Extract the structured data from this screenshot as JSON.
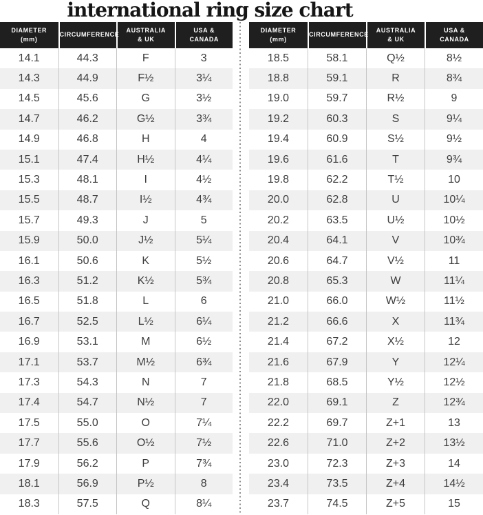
{
  "title": "international ring size chart",
  "columns_display": [
    "DIAMETER\n(mm)",
    "CIRCUMFERENCE",
    "AUSTRALIA\n& UK",
    "USA &\nCANADA"
  ],
  "colors": {
    "header_bg": "#1f1f1f",
    "header_text": "#ffffff",
    "row_alt": "#f0f0f1",
    "cell_text": "#3d3d3d",
    "grid_line": "#c4c4c4",
    "divider_dot": "#8c8c8c",
    "title_text": "#161616"
  },
  "chart_data": {
    "type": "table",
    "title": "international ring size chart",
    "columns": [
      "DIAMETER (mm)",
      "CIRCUMFERENCE",
      "AUSTRALIA & UK",
      "USA & CANADA"
    ],
    "tables": [
      {
        "rows": [
          [
            "14.1",
            "44.3",
            "F",
            "3"
          ],
          [
            "14.3",
            "44.9",
            "F½",
            "3¼"
          ],
          [
            "14.5",
            "45.6",
            "G",
            "3½"
          ],
          [
            "14.7",
            "46.2",
            "G½",
            "3¾"
          ],
          [
            "14.9",
            "46.8",
            "H",
            "4"
          ],
          [
            "15.1",
            "47.4",
            "H½",
            "4¼"
          ],
          [
            "15.3",
            "48.1",
            "I",
            "4½"
          ],
          [
            "15.5",
            "48.7",
            "I½",
            "4¾"
          ],
          [
            "15.7",
            "49.3",
            "J",
            "5"
          ],
          [
            "15.9",
            "50.0",
            "J½",
            "5¼"
          ],
          [
            "16.1",
            "50.6",
            "K",
            "5½"
          ],
          [
            "16.3",
            "51.2",
            "K½",
            "5¾"
          ],
          [
            "16.5",
            "51.8",
            "L",
            "6"
          ],
          [
            "16.7",
            "52.5",
            "L½",
            "6¼"
          ],
          [
            "16.9",
            "53.1",
            "M",
            "6½"
          ],
          [
            "17.1",
            "53.7",
            "M½",
            "6¾"
          ],
          [
            "17.3",
            "54.3",
            "N",
            "7"
          ],
          [
            "17.4",
            "54.7",
            "N½",
            "7"
          ],
          [
            "17.5",
            "55.0",
            "O",
            "7¼"
          ],
          [
            "17.7",
            "55.6",
            "O½",
            "7½"
          ],
          [
            "17.9",
            "56.2",
            "P",
            "7¾"
          ],
          [
            "18.1",
            "56.9",
            "P½",
            "8"
          ],
          [
            "18.3",
            "57.5",
            "Q",
            "8¼"
          ]
        ]
      },
      {
        "rows": [
          [
            "18.5",
            "58.1",
            "Q½",
            "8½"
          ],
          [
            "18.8",
            "59.1",
            "R",
            "8¾"
          ],
          [
            "19.0",
            "59.7",
            "R½",
            "9"
          ],
          [
            "19.2",
            "60.3",
            "S",
            "9¼"
          ],
          [
            "19.4",
            "60.9",
            "S½",
            "9½"
          ],
          [
            "19.6",
            "61.6",
            "T",
            "9¾"
          ],
          [
            "19.8",
            "62.2",
            "T½",
            "10"
          ],
          [
            "20.0",
            "62.8",
            "U",
            "10¼"
          ],
          [
            "20.2",
            "63.5",
            "U½",
            "10½"
          ],
          [
            "20.4",
            "64.1",
            "V",
            "10¾"
          ],
          [
            "20.6",
            "64.7",
            "V½",
            "11"
          ],
          [
            "20.8",
            "65.3",
            "W",
            "11¼"
          ],
          [
            "21.0",
            "66.0",
            "W½",
            "11½"
          ],
          [
            "21.2",
            "66.6",
            "X",
            "11¾"
          ],
          [
            "21.4",
            "67.2",
            "X½",
            "12"
          ],
          [
            "21.6",
            "67.9",
            "Y",
            "12¼"
          ],
          [
            "21.8",
            "68.5",
            "Y½",
            "12½"
          ],
          [
            "22.0",
            "69.1",
            "Z",
            "12¾"
          ],
          [
            "22.2",
            "69.7",
            "Z+1",
            "13"
          ],
          [
            "22.6",
            "71.0",
            "Z+2",
            "13½"
          ],
          [
            "23.0",
            "72.3",
            "Z+3",
            "14"
          ],
          [
            "23.4",
            "73.5",
            "Z+4",
            "14½"
          ],
          [
            "23.7",
            "74.5",
            "Z+5",
            "15"
          ]
        ]
      }
    ]
  }
}
